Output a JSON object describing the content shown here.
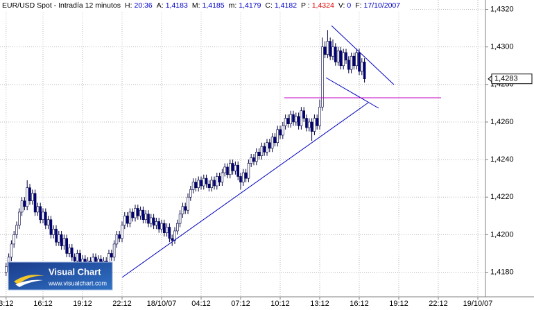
{
  "header": {
    "title": "EUR/USD Spot - Intradía 12 minutos",
    "fields": [
      {
        "label": "H:",
        "value": "20:36",
        "color": "#0000c8"
      },
      {
        "label": "A:",
        "value": "1,4183",
        "color": "#0000c8"
      },
      {
        "label": "M:",
        "value": "1,4185",
        "color": "#0000c8"
      },
      {
        "label": "m:",
        "value": "1,4179",
        "color": "#0000c8"
      },
      {
        "label": "C:",
        "value": "1,4182",
        "color": "#0000c8"
      },
      {
        "label": "P :",
        "value": "1,4324",
        "color": "#e00000"
      },
      {
        "label": "V:",
        "value": "0",
        "color": "#0000c8"
      },
      {
        "label": "F:",
        "value": "17/10/2007",
        "color": "#0000c8"
      }
    ]
  },
  "watermark": {
    "title": "Visual Chart",
    "url": "www.visualchart.com"
  },
  "chart_data": {
    "type": "candlestick",
    "grid": true,
    "up_color": "#ffffff",
    "down_color": "#000080",
    "wick_color": "#000040",
    "ylim": [
      1.4168,
      1.4325
    ],
    "yticks": [
      {
        "value": 1.418,
        "label": "1,4180"
      },
      {
        "value": 1.42,
        "label": "1,4200"
      },
      {
        "value": 1.422,
        "label": "1,4220"
      },
      {
        "value": 1.424,
        "label": "1,4240"
      },
      {
        "value": 1.426,
        "label": "1,4260"
      },
      {
        "value": 1.428,
        "label": "1,4280"
      },
      {
        "value": 1.43,
        "label": "1,4300"
      },
      {
        "value": 1.432,
        "label": "1,4320"
      }
    ],
    "price_label": {
      "value": 1.4283,
      "label": "1,4283"
    },
    "categories": [
      null,
      "3:12",
      null,
      null,
      null,
      null,
      null,
      null,
      null,
      null,
      null,
      null,
      null,
      null,
      null,
      "16:12",
      null,
      null,
      null,
      null,
      null,
      null,
      null,
      null,
      null,
      null,
      null,
      null,
      null,
      null,
      "19:12",
      null,
      null,
      null,
      null,
      null,
      null,
      null,
      null,
      null,
      null,
      null,
      null,
      null,
      null,
      "22:12",
      null,
      null,
      null,
      null,
      null,
      null,
      null,
      null,
      null,
      null,
      null,
      null,
      null,
      null,
      "18/10/07",
      null,
      null,
      null,
      null,
      null,
      null,
      null,
      null,
      null,
      null,
      null,
      null,
      null,
      null,
      "04:12",
      null,
      null,
      null,
      null,
      null,
      null,
      null,
      null,
      null,
      null,
      null,
      null,
      null,
      null,
      "07:12",
      null,
      null,
      null,
      null,
      null,
      null,
      null,
      null,
      null,
      null,
      null,
      null,
      null,
      null,
      "10:12",
      null,
      null,
      null,
      null,
      null,
      null,
      null,
      null,
      null,
      null,
      null,
      null,
      null,
      null,
      "13:12",
      null,
      null,
      null,
      null,
      null,
      null,
      null,
      null,
      null,
      null,
      null,
      null,
      null,
      null,
      "16:12",
      null,
      null,
      null,
      null,
      null,
      null,
      null,
      null,
      null,
      null,
      null,
      null,
      null,
      null,
      "19:12",
      null,
      null,
      null,
      null,
      null,
      null,
      null,
      null,
      null,
      null,
      null,
      null,
      null,
      null,
      "22:12",
      null,
      null,
      null,
      null,
      null,
      null,
      null,
      null,
      null,
      null,
      null,
      null,
      null,
      null,
      "19/10/07"
    ],
    "open": [
      null,
      1.418,
      1.4183,
      1.4188,
      1.4195,
      1.42,
      1.4205,
      1.4212,
      1.4218,
      1.4215,
      1.4225,
      1.4218,
      1.4222,
      1.4212,
      1.4215,
      1.4208,
      1.4212,
      1.4205,
      1.4208,
      1.42,
      1.4203,
      1.4196,
      1.42,
      1.4194,
      1.4198,
      1.419,
      1.4193,
      1.4188,
      1.4186,
      1.419,
      1.4184,
      1.4187,
      1.4182,
      1.4186,
      1.4183,
      1.4188,
      1.4184,
      1.4187,
      1.4183,
      1.4186,
      1.4184,
      1.419,
      1.4188,
      1.4195,
      1.42,
      1.4198,
      1.4205,
      1.421,
      1.4206,
      1.4212,
      1.4209,
      1.4214,
      1.421,
      1.4213,
      1.4208,
      1.4211,
      1.4206,
      1.4209,
      1.4205,
      1.4207,
      1.4203,
      1.4206,
      1.4201,
      1.4204,
      1.4198,
      1.4197,
      1.4202,
      1.4206,
      1.4211,
      1.4215,
      1.4213,
      1.422,
      1.4224,
      1.4228,
      1.4225,
      1.4229,
      1.4226,
      1.423,
      1.4227,
      1.4225,
      1.4229,
      1.4226,
      1.4231,
      1.4228,
      1.4233,
      1.4236,
      1.4232,
      1.4238,
      1.4234,
      1.4237,
      1.4231,
      1.4228,
      1.4233,
      1.423,
      1.4238,
      1.4241,
      1.4239,
      1.4244,
      1.4242,
      1.4247,
      1.4244,
      1.4249,
      1.4246,
      1.4252,
      1.4249,
      1.4256,
      1.4253,
      1.4258,
      1.4262,
      1.4259,
      1.4264,
      1.426,
      1.4263,
      1.4258,
      1.4266,
      1.4262,
      1.4257,
      1.426,
      1.4255,
      1.4262,
      1.4258,
      1.4268,
      1.43,
      1.4296,
      1.4303,
      1.4295,
      1.43,
      1.4292,
      1.4298,
      1.429,
      1.4297,
      1.4293,
      1.4288,
      1.4295,
      1.429,
      1.4297,
      1.4287,
      1.4292,
      null,
      null,
      null,
      null,
      null,
      null,
      null,
      null,
      null,
      null,
      null,
      null,
      null,
      null,
      null,
      null,
      null,
      null,
      null,
      null,
      null,
      null,
      null,
      null,
      null,
      null,
      null,
      null,
      null,
      null,
      null,
      null,
      null,
      null,
      null,
      null,
      null,
      null,
      null,
      null,
      null,
      null,
      null
    ],
    "high": [
      null,
      1.4185,
      1.419,
      1.4197,
      1.4202,
      1.4207,
      1.4214,
      1.422,
      1.422,
      1.4229,
      1.4227,
      1.4224,
      1.4224,
      1.4217,
      1.4217,
      1.4214,
      1.4214,
      1.421,
      1.421,
      1.4205,
      1.4205,
      1.4202,
      1.4202,
      1.42,
      1.42,
      1.4195,
      1.4195,
      1.419,
      1.4192,
      1.4192,
      1.4189,
      1.4189,
      1.4188,
      1.4188,
      1.419,
      1.419,
      1.4189,
      1.4189,
      1.4188,
      1.4188,
      1.4192,
      1.4192,
      1.4197,
      1.4202,
      1.4202,
      1.4207,
      1.4212,
      1.4212,
      1.4214,
      1.4214,
      1.4216,
      1.4216,
      1.4215,
      1.4215,
      1.4213,
      1.4213,
      1.4211,
      1.4211,
      1.4209,
      1.4209,
      1.4208,
      1.4208,
      1.4206,
      1.4206,
      1.42,
      1.4204,
      1.4208,
      1.4213,
      1.4217,
      1.4217,
      1.4222,
      1.4226,
      1.423,
      1.423,
      1.4231,
      1.4231,
      1.4232,
      1.4232,
      1.4229,
      1.4231,
      1.4231,
      1.4233,
      1.4233,
      1.4235,
      1.4238,
      1.4238,
      1.424,
      1.424,
      1.4239,
      1.4239,
      1.4233,
      1.4235,
      1.4235,
      1.424,
      1.4243,
      1.4243,
      1.4246,
      1.4246,
      1.4249,
      1.4249,
      1.4251,
      1.4251,
      1.4254,
      1.4254,
      1.4258,
      1.4258,
      1.426,
      1.4264,
      1.4264,
      1.4266,
      1.4266,
      1.4265,
      1.4265,
      1.4268,
      1.4268,
      1.4264,
      1.4262,
      1.4262,
      1.4264,
      1.4264,
      1.4272,
      1.4305,
      1.4303,
      1.4309,
      1.4305,
      1.4304,
      1.4302,
      1.43,
      1.43,
      1.4299,
      1.4299,
      1.4295,
      1.4297,
      1.4297,
      1.4299,
      1.4299,
      1.4294,
      1.4294,
      null,
      null,
      null,
      null,
      null,
      null,
      null,
      null,
      null,
      null,
      null,
      null,
      null,
      null,
      null,
      null,
      null,
      null,
      null,
      null,
      null,
      null,
      null,
      null,
      null,
      null,
      null,
      null,
      null,
      null,
      null,
      null,
      null,
      null,
      null,
      null,
      null,
      null,
      null,
      null,
      null,
      null,
      null
    ],
    "low": [
      null,
      1.4178,
      1.4181,
      1.4186,
      1.4193,
      1.4198,
      1.4203,
      1.421,
      1.4213,
      1.4213,
      1.4216,
      1.4216,
      1.421,
      1.421,
      1.4206,
      1.4206,
      1.4203,
      1.4203,
      1.4198,
      1.4198,
      1.4194,
      1.4194,
      1.4192,
      1.4192,
      1.4188,
      1.4188,
      1.4186,
      1.4184,
      1.4184,
      1.4182,
      1.4182,
      1.4178,
      1.418,
      1.4181,
      1.4181,
      1.4182,
      1.4182,
      1.4181,
      1.4181,
      1.4182,
      1.4182,
      1.4186,
      1.4186,
      1.4193,
      1.4196,
      1.4196,
      1.4203,
      1.4204,
      1.4204,
      1.4207,
      1.4207,
      1.4208,
      1.4208,
      1.4206,
      1.4206,
      1.4204,
      1.4204,
      1.4203,
      1.4203,
      1.4201,
      1.4201,
      1.4199,
      1.4199,
      1.4196,
      1.4194,
      1.4195,
      1.42,
      1.4204,
      1.4209,
      1.4211,
      1.4211,
      1.4218,
      1.4222,
      1.4223,
      1.4223,
      1.4224,
      1.4224,
      1.4225,
      1.4223,
      1.4223,
      1.4224,
      1.4224,
      1.4226,
      1.4226,
      1.4231,
      1.423,
      1.423,
      1.4232,
      1.4232,
      1.4229,
      1.4224,
      1.4226,
      1.4228,
      1.4228,
      1.4236,
      1.4237,
      1.4237,
      1.424,
      1.424,
      1.4242,
      1.4242,
      1.4244,
      1.4244,
      1.4247,
      1.4247,
      1.4251,
      1.4251,
      1.4256,
      1.4257,
      1.4257,
      1.4258,
      1.4258,
      1.4256,
      1.4256,
      1.426,
      1.4255,
      1.4255,
      1.425,
      1.4253,
      1.4256,
      1.4256,
      1.4266,
      1.4294,
      1.4294,
      1.4293,
      1.4293,
      1.429,
      1.429,
      1.4288,
      1.4288,
      1.4291,
      1.4286,
      1.4286,
      1.4288,
      1.4288,
      1.4285,
      1.4285,
      1.4281,
      null,
      null,
      null,
      null,
      null,
      null,
      null,
      null,
      null,
      null,
      null,
      null,
      null,
      null,
      null,
      null,
      null,
      null,
      null,
      null,
      null,
      null,
      null,
      null,
      null,
      null,
      null,
      null,
      null,
      null,
      null,
      null,
      null,
      null,
      null,
      null,
      null,
      null,
      null,
      null,
      null,
      null,
      null
    ],
    "close": [
      null,
      1.4183,
      1.4188,
      1.4195,
      1.42,
      1.4205,
      1.4212,
      1.4218,
      1.4215,
      1.4225,
      1.4218,
      1.4222,
      1.4212,
      1.4215,
      1.4208,
      1.4212,
      1.4205,
      1.4208,
      1.42,
      1.4203,
      1.4196,
      1.42,
      1.4194,
      1.4198,
      1.419,
      1.4193,
      1.4188,
      1.4186,
      1.419,
      1.4184,
      1.4187,
      1.4182,
      1.4186,
      1.4183,
      1.4188,
      1.4184,
      1.4187,
      1.4183,
      1.4186,
      1.4184,
      1.419,
      1.4188,
      1.4195,
      1.42,
      1.4198,
      1.4205,
      1.421,
      1.4206,
      1.4212,
      1.4209,
      1.4214,
      1.421,
      1.4213,
      1.4208,
      1.4211,
      1.4206,
      1.4209,
      1.4205,
      1.4207,
      1.4203,
      1.4206,
      1.4201,
      1.4204,
      1.4198,
      1.4197,
      1.4202,
      1.4206,
      1.4211,
      1.4215,
      1.4213,
      1.422,
      1.4224,
      1.4228,
      1.4225,
      1.4229,
      1.4226,
      1.423,
      1.4227,
      1.4225,
      1.4229,
      1.4226,
      1.4231,
      1.4228,
      1.4233,
      1.4236,
      1.4232,
      1.4238,
      1.4234,
      1.4237,
      1.4231,
      1.4228,
      1.4233,
      1.423,
      1.4238,
      1.4241,
      1.4239,
      1.4244,
      1.4242,
      1.4247,
      1.4244,
      1.4249,
      1.4246,
      1.4252,
      1.4249,
      1.4256,
      1.4253,
      1.4258,
      1.4262,
      1.4259,
      1.4264,
      1.426,
      1.4263,
      1.4258,
      1.4266,
      1.4262,
      1.4257,
      1.426,
      1.4255,
      1.4262,
      1.4258,
      1.4268,
      1.43,
      1.4296,
      1.4303,
      1.4295,
      1.43,
      1.4292,
      1.4298,
      1.429,
      1.4297,
      1.4293,
      1.4288,
      1.4295,
      1.429,
      1.4297,
      1.4287,
      1.4292,
      1.4283,
      null,
      null,
      null,
      null,
      null,
      null,
      null,
      null,
      null,
      null,
      null,
      null,
      null,
      null,
      null,
      null,
      null,
      null,
      null,
      null,
      null,
      null,
      null,
      null,
      null,
      null,
      null,
      null,
      null,
      null,
      null,
      null,
      null,
      null,
      null,
      null,
      null,
      null,
      null,
      null,
      null,
      null,
      null
    ]
  }
}
